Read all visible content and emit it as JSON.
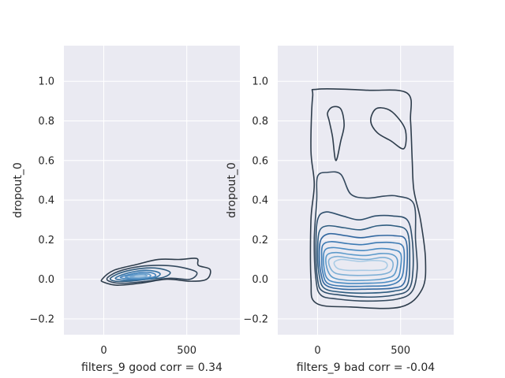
{
  "chart_data": [
    {
      "type": "kde-contour",
      "xlabel": "filters_9 good corr = 0.34",
      "ylabel": "dropout_0",
      "xlim": [
        -240,
        820
      ],
      "ylim": [
        -0.28,
        1.18
      ],
      "xticks": [
        {
          "value": 0,
          "label": "0"
        },
        {
          "value": 500,
          "label": "500"
        }
      ],
      "yticks": [
        {
          "value": -0.2,
          "label": "−0.2"
        },
        {
          "value": 0.0,
          "label": "0.0"
        },
        {
          "value": 0.2,
          "label": "0.2"
        },
        {
          "value": 0.4,
          "label": "0.4"
        },
        {
          "value": 0.6,
          "label": "0.6"
        },
        {
          "value": 0.8,
          "label": "0.8"
        },
        {
          "value": 1.0,
          "label": "1.0"
        }
      ],
      "grid": true,
      "levels": [
        {
          "color": "#2e3d4c",
          "points": [
            [
              -10,
              0.0
            ],
            [
              60,
              0.045
            ],
            [
              200,
              0.075
            ],
            [
              330,
              0.1
            ],
            [
              460,
              0.1
            ],
            [
              560,
              0.105
            ],
            [
              570,
              0.07
            ],
            [
              640,
              0.05
            ],
            [
              620,
              0.0
            ],
            [
              520,
              -0.01
            ],
            [
              380,
              0.0
            ],
            [
              220,
              -0.02
            ],
            [
              80,
              -0.03
            ],
            [
              0,
              -0.015
            ]
          ]
        },
        {
          "color": "#34495e",
          "points": [
            [
              20,
              0.005
            ],
            [
              90,
              0.04
            ],
            [
              220,
              0.065
            ],
            [
              360,
              0.07
            ],
            [
              470,
              0.06
            ],
            [
              560,
              0.035
            ],
            [
              520,
              0.0
            ],
            [
              400,
              0.005
            ],
            [
              260,
              -0.01
            ],
            [
              130,
              -0.02
            ],
            [
              50,
              -0.015
            ]
          ]
        },
        {
          "color": "#2f5d80",
          "points": [
            [
              40,
              0.005
            ],
            [
              110,
              0.035
            ],
            [
              230,
              0.055
            ],
            [
              330,
              0.055
            ],
            [
              400,
              0.035
            ],
            [
              360,
              0.01
            ],
            [
              260,
              0.0
            ],
            [
              150,
              -0.01
            ],
            [
              70,
              -0.01
            ]
          ]
        },
        {
          "color": "#3673a4",
          "points": [
            [
              70,
              0.005
            ],
            [
              140,
              0.03
            ],
            [
              240,
              0.045
            ],
            [
              310,
              0.04
            ],
            [
              340,
              0.025
            ],
            [
              300,
              0.005
            ],
            [
              220,
              -0.002
            ],
            [
              130,
              -0.005
            ]
          ]
        },
        {
          "color": "#4383bb",
          "points": [
            [
              100,
              0.008
            ],
            [
              160,
              0.025
            ],
            [
              240,
              0.036
            ],
            [
              300,
              0.03
            ],
            [
              310,
              0.015
            ],
            [
              260,
              0.005
            ],
            [
              180,
              0.0
            ]
          ]
        },
        {
          "color": "#5b96c7",
          "points": [
            [
              130,
              0.01
            ],
            [
              180,
              0.022
            ],
            [
              240,
              0.028
            ],
            [
              280,
              0.022
            ],
            [
              270,
              0.01
            ],
            [
              200,
              0.005
            ]
          ]
        },
        {
          "color": "#7aaad2",
          "points": [
            [
              160,
              0.012
            ],
            [
              200,
              0.02
            ],
            [
              245,
              0.022
            ],
            [
              260,
              0.016
            ],
            [
              220,
              0.01
            ]
          ]
        },
        {
          "color": "#a3c4e0",
          "points": [
            [
              190,
              0.014
            ],
            [
              225,
              0.019
            ],
            [
              245,
              0.017
            ],
            [
              220,
              0.013
            ]
          ]
        }
      ]
    },
    {
      "type": "kde-contour",
      "xlabel": "filters_9 bad corr = -0.04",
      "ylabel": "dropout_0",
      "xlim": [
        -240,
        820
      ],
      "ylim": [
        -0.28,
        1.18
      ],
      "xticks": [
        {
          "value": 0,
          "label": "0"
        },
        {
          "value": 500,
          "label": "500"
        }
      ],
      "yticks": [
        {
          "value": -0.2,
          "label": "−0.2"
        },
        {
          "value": 0.0,
          "label": "0.0"
        },
        {
          "value": 0.2,
          "label": "0.2"
        },
        {
          "value": 0.4,
          "label": "0.4"
        },
        {
          "value": 0.6,
          "label": "0.6"
        },
        {
          "value": 0.8,
          "label": "0.8"
        },
        {
          "value": 1.0,
          "label": "1.0"
        }
      ],
      "grid": true,
      "levels": [
        {
          "color": "#2e3d4c",
          "points": [
            [
              -30,
              0.92
            ],
            [
              0,
              0.96
            ],
            [
              300,
              0.955
            ],
            [
              540,
              0.94
            ],
            [
              560,
              0.8
            ],
            [
              570,
              0.6
            ],
            [
              580,
              0.45
            ],
            [
              620,
              0.3
            ],
            [
              650,
              0.1
            ],
            [
              630,
              -0.05
            ],
            [
              500,
              -0.14
            ],
            [
              200,
              -0.14
            ],
            [
              -10,
              -0.12
            ],
            [
              -40,
              0.0
            ],
            [
              -40,
              0.3
            ],
            [
              -20,
              0.48
            ],
            [
              -40,
              0.65
            ]
          ]
        },
        {
          "color": "#2e3d4c",
          "points": [
            [
              60,
              0.84
            ],
            [
              90,
              0.87
            ],
            [
              140,
              0.86
            ],
            [
              160,
              0.78
            ],
            [
              140,
              0.7
            ],
            [
              110,
              0.6
            ],
            [
              90,
              0.72
            ],
            [
              70,
              0.8
            ]
          ]
        },
        {
          "color": "#2e3d4c",
          "points": [
            [
              320,
              0.8
            ],
            [
              350,
              0.86
            ],
            [
              420,
              0.86
            ],
            [
              480,
              0.82
            ],
            [
              530,
              0.75
            ],
            [
              520,
              0.66
            ],
            [
              440,
              0.7
            ],
            [
              360,
              0.74
            ]
          ]
        },
        {
          "color": "#34495e",
          "points": [
            [
              0,
              0.52
            ],
            [
              60,
              0.54
            ],
            [
              140,
              0.53
            ],
            [
              200,
              0.43
            ],
            [
              300,
              0.41
            ],
            [
              400,
              0.42
            ],
            [
              480,
              0.42
            ],
            [
              580,
              0.38
            ],
            [
              590,
              0.2
            ],
            [
              600,
              0.05
            ],
            [
              570,
              -0.06
            ],
            [
              480,
              -0.1
            ],
            [
              300,
              -0.11
            ],
            [
              120,
              -0.1
            ],
            [
              20,
              -0.08
            ],
            [
              -10,
              0.0
            ],
            [
              -20,
              0.2
            ],
            [
              -5,
              0.4
            ]
          ]
        },
        {
          "color": "#2f4f6c",
          "points": [
            [
              0,
              0.3
            ],
            [
              50,
              0.34
            ],
            [
              150,
              0.32
            ],
            [
              250,
              0.3
            ],
            [
              350,
              0.32
            ],
            [
              450,
              0.32
            ],
            [
              540,
              0.3
            ],
            [
              570,
              0.2
            ],
            [
              575,
              0.05
            ],
            [
              550,
              -0.05
            ],
            [
              460,
              -0.08
            ],
            [
              300,
              -0.09
            ],
            [
              140,
              -0.08
            ],
            [
              30,
              -0.06
            ],
            [
              0,
              0.0
            ],
            [
              -10,
              0.15
            ]
          ]
        },
        {
          "color": "#2f5d80",
          "points": [
            [
              10,
              0.24
            ],
            [
              60,
              0.27
            ],
            [
              160,
              0.26
            ],
            [
              260,
              0.25
            ],
            [
              360,
              0.27
            ],
            [
              460,
              0.27
            ],
            [
              540,
              0.24
            ],
            [
              555,
              0.1
            ],
            [
              540,
              -0.03
            ],
            [
              460,
              -0.06
            ],
            [
              300,
              -0.07
            ],
            [
              140,
              -0.065
            ],
            [
              40,
              -0.045
            ],
            [
              10,
              0.02
            ],
            [
              0,
              0.13
            ]
          ]
        },
        {
          "color": "#3368a0",
          "points": [
            [
              20,
              0.2
            ],
            [
              70,
              0.23
            ],
            [
              170,
              0.22
            ],
            [
              260,
              0.21
            ],
            [
              360,
              0.22
            ],
            [
              460,
              0.22
            ],
            [
              530,
              0.2
            ],
            [
              540,
              0.08
            ],
            [
              520,
              -0.02
            ],
            [
              450,
              -0.045
            ],
            [
              300,
              -0.05
            ],
            [
              150,
              -0.05
            ],
            [
              50,
              -0.03
            ],
            [
              20,
              0.03
            ],
            [
              10,
              0.12
            ]
          ]
        },
        {
          "color": "#3d7ab3",
          "points": [
            [
              30,
              0.17
            ],
            [
              80,
              0.19
            ],
            [
              180,
              0.18
            ],
            [
              270,
              0.175
            ],
            [
              360,
              0.185
            ],
            [
              450,
              0.185
            ],
            [
              515,
              0.165
            ],
            [
              520,
              0.07
            ],
            [
              500,
              0.0
            ],
            [
              430,
              -0.03
            ],
            [
              300,
              -0.035
            ],
            [
              160,
              -0.035
            ],
            [
              60,
              -0.02
            ],
            [
              30,
              0.04
            ],
            [
              25,
              0.1
            ]
          ]
        },
        {
          "color": "#4a8bc2",
          "points": [
            [
              40,
              0.14
            ],
            [
              90,
              0.16
            ],
            [
              190,
              0.15
            ],
            [
              280,
              0.145
            ],
            [
              370,
              0.155
            ],
            [
              450,
              0.15
            ],
            [
              500,
              0.13
            ],
            [
              500,
              0.06
            ],
            [
              480,
              0.005
            ],
            [
              410,
              -0.015
            ],
            [
              300,
              -0.02
            ],
            [
              170,
              -0.02
            ],
            [
              70,
              -0.005
            ],
            [
              40,
              0.05
            ]
          ]
        },
        {
          "color": "#5e9bcb",
          "points": [
            [
              55,
              0.12
            ],
            [
              110,
              0.135
            ],
            [
              200,
              0.125
            ],
            [
              290,
              0.12
            ],
            [
              380,
              0.13
            ],
            [
              450,
              0.125
            ],
            [
              480,
              0.1
            ],
            [
              475,
              0.05
            ],
            [
              450,
              0.015
            ],
            [
              380,
              0.0
            ],
            [
              290,
              -0.005
            ],
            [
              180,
              -0.005
            ],
            [
              90,
              0.01
            ],
            [
              55,
              0.06
            ]
          ]
        },
        {
          "color": "#7fb0d6",
          "points": [
            [
              70,
              0.1
            ],
            [
              120,
              0.115
            ],
            [
              210,
              0.105
            ],
            [
              300,
              0.1
            ],
            [
              390,
              0.11
            ],
            [
              440,
              0.1
            ],
            [
              455,
              0.075
            ],
            [
              440,
              0.04
            ],
            [
              390,
              0.025
            ],
            [
              300,
              0.02
            ],
            [
              200,
              0.02
            ],
            [
              110,
              0.03
            ],
            [
              75,
              0.06
            ]
          ]
        },
        {
          "color": "#a9cbe5",
          "points": [
            [
              100,
              0.085
            ],
            [
              140,
              0.1
            ],
            [
              200,
              0.095
            ],
            [
              260,
              0.09
            ],
            [
              330,
              0.095
            ],
            [
              400,
              0.09
            ],
            [
              420,
              0.07
            ],
            [
              400,
              0.05
            ],
            [
              340,
              0.045
            ],
            [
              260,
              0.045
            ],
            [
              180,
              0.045
            ],
            [
              120,
              0.055
            ]
          ]
        }
      ]
    }
  ]
}
